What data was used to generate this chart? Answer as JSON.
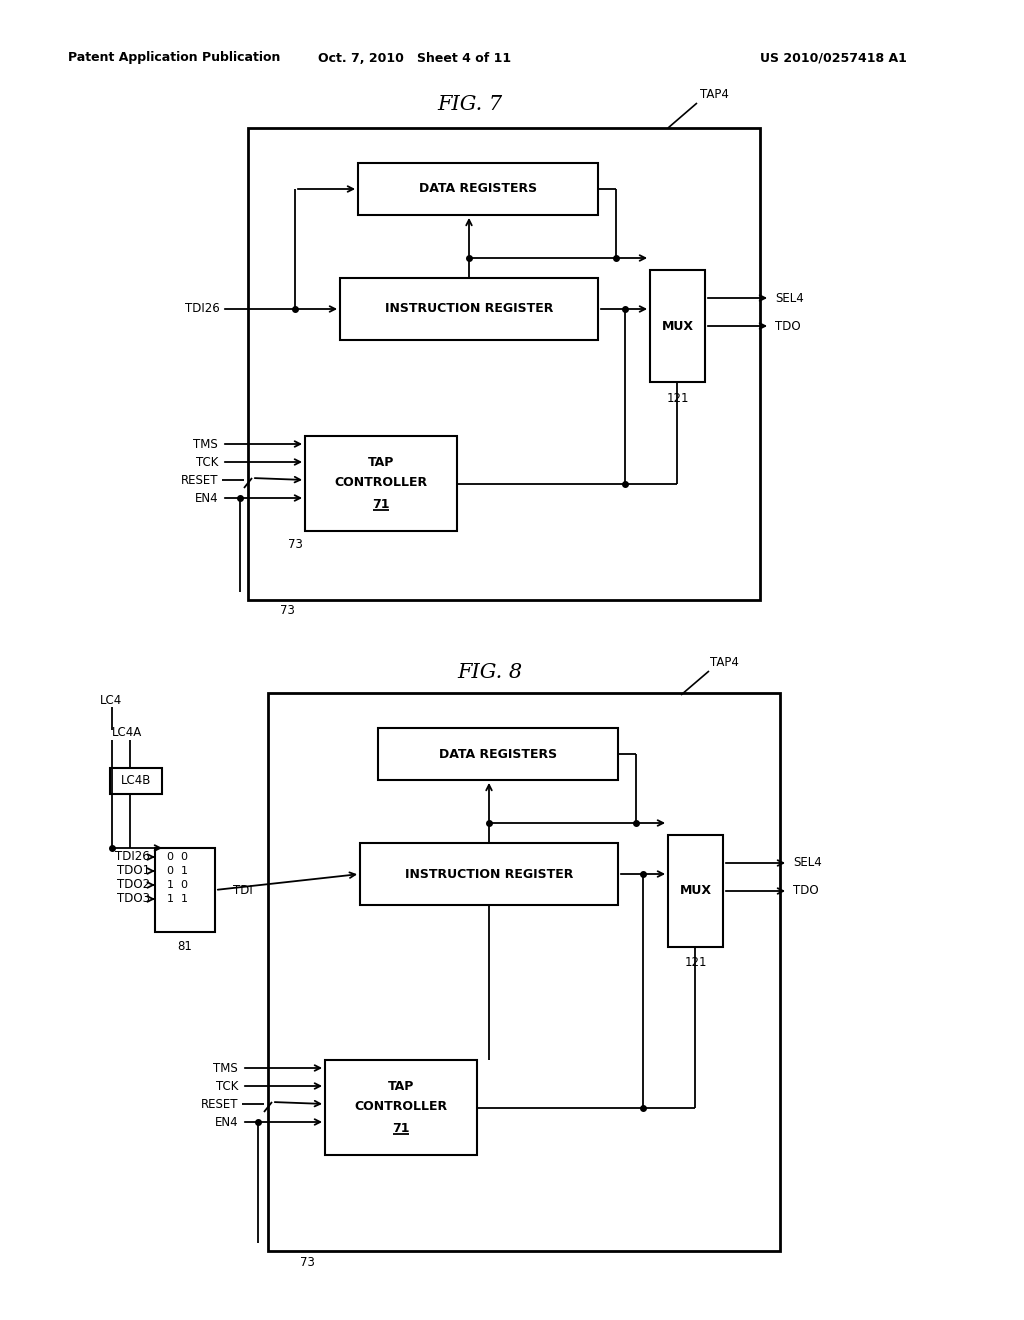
{
  "header_left": "Patent Application Publication",
  "header_mid": "Oct. 7, 2010   Sheet 4 of 11",
  "header_right": "US 2010/0257418 A1",
  "fig7_title": "FIG. 7",
  "fig8_title": "FIG. 8",
  "bg_color": "#ffffff",
  "line_color": "#000000",
  "text_color": "#000000"
}
